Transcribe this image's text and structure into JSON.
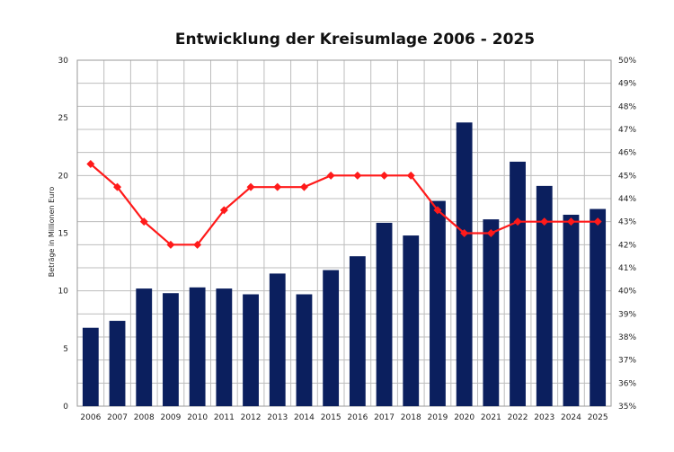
{
  "chart_data": {
    "type": "bar",
    "title": "Entwicklung der Kreisumlage 2006 - 2025",
    "ylabel": "Beträge in Millionen Euro",
    "y2label": "",
    "categories": [
      "2006",
      "2007",
      "2008",
      "2009",
      "2010",
      "2011",
      "2012",
      "2013",
      "2014",
      "2015",
      "2016",
      "2017",
      "2018",
      "2019",
      "2020",
      "2021",
      "2022",
      "2023",
      "2024",
      "2025"
    ],
    "ylim": [
      0,
      30
    ],
    "y_ticks": [
      0,
      5,
      10,
      15,
      20,
      25,
      30
    ],
    "y2lim": [
      35,
      50
    ],
    "y2_ticks": [
      "35%",
      "36%",
      "37%",
      "38%",
      "39%",
      "40%",
      "41%",
      "42%",
      "43%",
      "44%",
      "45%",
      "46%",
      "47%",
      "48%",
      "49%",
      "50%"
    ],
    "grid": true,
    "series": [
      {
        "type": "bar",
        "axis": "left",
        "color": "#0b1f5e",
        "values": [
          6.8,
          7.4,
          10.2,
          9.8,
          10.3,
          10.2,
          9.7,
          11.5,
          9.7,
          11.8,
          13.0,
          15.9,
          14.8,
          17.8,
          24.6,
          16.2,
          21.2,
          19.1,
          16.6,
          17.1
        ]
      },
      {
        "type": "line",
        "axis": "right",
        "color": "#ff1a1a",
        "values": [
          45.5,
          44.5,
          43.0,
          42.0,
          42.0,
          43.5,
          44.5,
          44.5,
          44.5,
          45.0,
          45.0,
          45.0,
          45.0,
          43.5,
          42.5,
          42.5,
          43.0,
          43.0,
          43.0,
          43.0
        ]
      }
    ]
  }
}
